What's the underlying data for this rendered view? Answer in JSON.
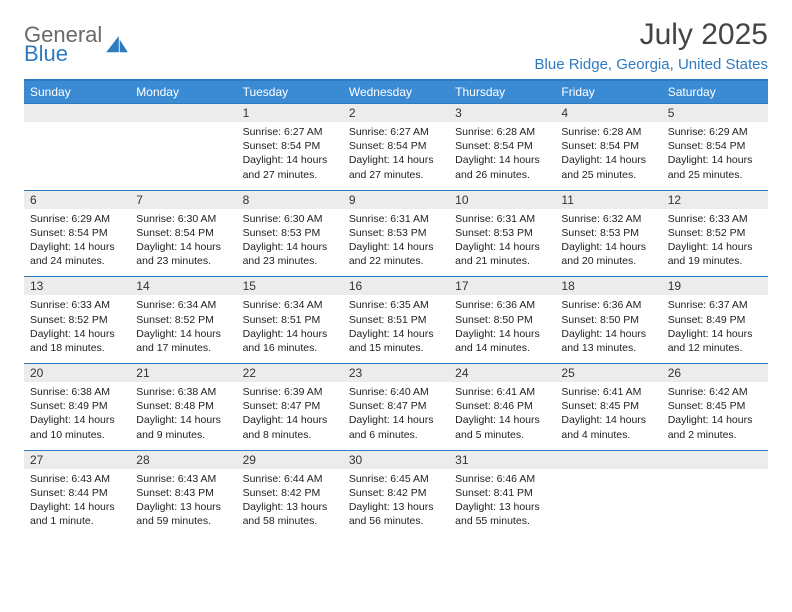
{
  "brand": {
    "word1": "General",
    "word2": "Blue"
  },
  "title": "July 2025",
  "location": "Blue Ridge, Georgia, United States",
  "colors": {
    "accent": "#2f7bbf",
    "header_bg": "#3b8bd4",
    "daynum_bg": "#ececec",
    "text": "#222222"
  },
  "days_of_week": [
    "Sunday",
    "Monday",
    "Tuesday",
    "Wednesday",
    "Thursday",
    "Friday",
    "Saturday"
  ],
  "weeks": [
    [
      null,
      null,
      {
        "n": "1",
        "sr": "6:27 AM",
        "ss": "8:54 PM",
        "dl": "14 hours and 27 minutes."
      },
      {
        "n": "2",
        "sr": "6:27 AM",
        "ss": "8:54 PM",
        "dl": "14 hours and 27 minutes."
      },
      {
        "n": "3",
        "sr": "6:28 AM",
        "ss": "8:54 PM",
        "dl": "14 hours and 26 minutes."
      },
      {
        "n": "4",
        "sr": "6:28 AM",
        "ss": "8:54 PM",
        "dl": "14 hours and 25 minutes."
      },
      {
        "n": "5",
        "sr": "6:29 AM",
        "ss": "8:54 PM",
        "dl": "14 hours and 25 minutes."
      }
    ],
    [
      {
        "n": "6",
        "sr": "6:29 AM",
        "ss": "8:54 PM",
        "dl": "14 hours and 24 minutes."
      },
      {
        "n": "7",
        "sr": "6:30 AM",
        "ss": "8:54 PM",
        "dl": "14 hours and 23 minutes."
      },
      {
        "n": "8",
        "sr": "6:30 AM",
        "ss": "8:53 PM",
        "dl": "14 hours and 23 minutes."
      },
      {
        "n": "9",
        "sr": "6:31 AM",
        "ss": "8:53 PM",
        "dl": "14 hours and 22 minutes."
      },
      {
        "n": "10",
        "sr": "6:31 AM",
        "ss": "8:53 PM",
        "dl": "14 hours and 21 minutes."
      },
      {
        "n": "11",
        "sr": "6:32 AM",
        "ss": "8:53 PM",
        "dl": "14 hours and 20 minutes."
      },
      {
        "n": "12",
        "sr": "6:33 AM",
        "ss": "8:52 PM",
        "dl": "14 hours and 19 minutes."
      }
    ],
    [
      {
        "n": "13",
        "sr": "6:33 AM",
        "ss": "8:52 PM",
        "dl": "14 hours and 18 minutes."
      },
      {
        "n": "14",
        "sr": "6:34 AM",
        "ss": "8:52 PM",
        "dl": "14 hours and 17 minutes."
      },
      {
        "n": "15",
        "sr": "6:34 AM",
        "ss": "8:51 PM",
        "dl": "14 hours and 16 minutes."
      },
      {
        "n": "16",
        "sr": "6:35 AM",
        "ss": "8:51 PM",
        "dl": "14 hours and 15 minutes."
      },
      {
        "n": "17",
        "sr": "6:36 AM",
        "ss": "8:50 PM",
        "dl": "14 hours and 14 minutes."
      },
      {
        "n": "18",
        "sr": "6:36 AM",
        "ss": "8:50 PM",
        "dl": "14 hours and 13 minutes."
      },
      {
        "n": "19",
        "sr": "6:37 AM",
        "ss": "8:49 PM",
        "dl": "14 hours and 12 minutes."
      }
    ],
    [
      {
        "n": "20",
        "sr": "6:38 AM",
        "ss": "8:49 PM",
        "dl": "14 hours and 10 minutes."
      },
      {
        "n": "21",
        "sr": "6:38 AM",
        "ss": "8:48 PM",
        "dl": "14 hours and 9 minutes."
      },
      {
        "n": "22",
        "sr": "6:39 AM",
        "ss": "8:47 PM",
        "dl": "14 hours and 8 minutes."
      },
      {
        "n": "23",
        "sr": "6:40 AM",
        "ss": "8:47 PM",
        "dl": "14 hours and 6 minutes."
      },
      {
        "n": "24",
        "sr": "6:41 AM",
        "ss": "8:46 PM",
        "dl": "14 hours and 5 minutes."
      },
      {
        "n": "25",
        "sr": "6:41 AM",
        "ss": "8:45 PM",
        "dl": "14 hours and 4 minutes."
      },
      {
        "n": "26",
        "sr": "6:42 AM",
        "ss": "8:45 PM",
        "dl": "14 hours and 2 minutes."
      }
    ],
    [
      {
        "n": "27",
        "sr": "6:43 AM",
        "ss": "8:44 PM",
        "dl": "14 hours and 1 minute."
      },
      {
        "n": "28",
        "sr": "6:43 AM",
        "ss": "8:43 PM",
        "dl": "13 hours and 59 minutes."
      },
      {
        "n": "29",
        "sr": "6:44 AM",
        "ss": "8:42 PM",
        "dl": "13 hours and 58 minutes."
      },
      {
        "n": "30",
        "sr": "6:45 AM",
        "ss": "8:42 PM",
        "dl": "13 hours and 56 minutes."
      },
      {
        "n": "31",
        "sr": "6:46 AM",
        "ss": "8:41 PM",
        "dl": "13 hours and 55 minutes."
      },
      null,
      null
    ]
  ]
}
